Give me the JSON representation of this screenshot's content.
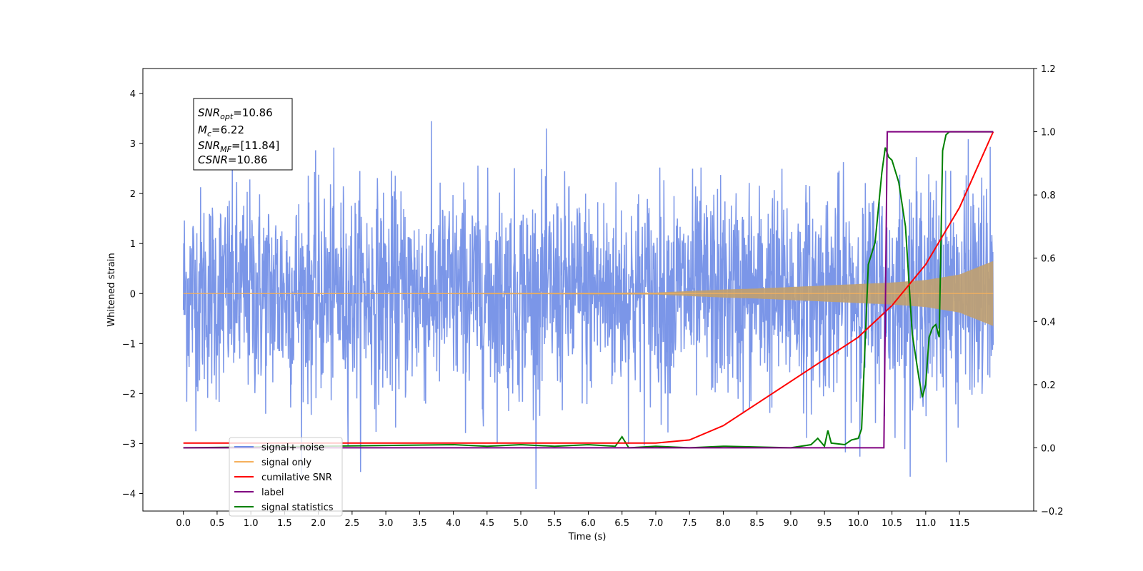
{
  "chart_data": {
    "type": "line",
    "xlabel": "Time (s)",
    "ylabel": "Whitened strain",
    "xlim": [
      -0.6,
      12.6
    ],
    "ylim": [
      -4.35,
      4.5
    ],
    "y2lim": [
      -0.2,
      1.2
    ],
    "x_ticks": [
      "0.0",
      "0.5",
      "1.0",
      "1.5",
      "2.0",
      "2.5",
      "3.0",
      "3.5",
      "4.0",
      "4.5",
      "5.0",
      "5.5",
      "6.0",
      "6.5",
      "7.0",
      "7.5",
      "8.0",
      "8.5",
      "9.0",
      "9.5",
      "10.0",
      "10.5",
      "11.0",
      "11.5"
    ],
    "y_ticks": [
      "−4",
      "−3",
      "−2",
      "−1",
      "0",
      "1",
      "2",
      "3",
      "4"
    ],
    "y2_ticks": [
      "−0.2",
      "0.0",
      "0.2",
      "0.4",
      "0.6",
      "0.8",
      "1.0",
      "1.2"
    ],
    "annotation": {
      "snr_opt_value": "=10.86",
      "mc_value": "=6.22",
      "snr_mf_value": "=[11.84]",
      "csnr_value": "=10.86"
    },
    "legend_position": "lower-left",
    "series": [
      {
        "name": "signal+ noise",
        "axis": "left",
        "color": "#6d8be6",
        "noise_sigma": 1.0,
        "x_range": [
          0,
          12.0
        ],
        "y_range_approx": [
          -3.9,
          4.1
        ]
      },
      {
        "name": "signal only",
        "axis": "left",
        "color": "#f5b05c",
        "envelope": {
          "x": [
            0,
            7.0,
            7.5,
            8.0,
            8.5,
            9.0,
            9.5,
            10.0,
            10.5,
            11.0,
            11.5,
            12.0
          ],
          "y": [
            0.0,
            0.02,
            0.05,
            0.08,
            0.1,
            0.13,
            0.16,
            0.19,
            0.22,
            0.27,
            0.38,
            0.65
          ]
        }
      },
      {
        "name": "cumilative SNR",
        "axis": "right",
        "color": "#ff0000",
        "x": [
          0,
          7.0,
          7.5,
          8.0,
          8.5,
          9.0,
          9.5,
          10.0,
          10.5,
          11.0,
          11.5,
          12.0
        ],
        "y": [
          0.015,
          0.015,
          0.025,
          0.07,
          0.14,
          0.21,
          0.28,
          0.35,
          0.45,
          0.58,
          0.76,
          1.0
        ]
      },
      {
        "name": "label",
        "axis": "right",
        "color": "#800080",
        "x": [
          0,
          10.38,
          10.43,
          12.0
        ],
        "y": [
          0.0,
          0.0,
          1.0,
          1.0
        ]
      },
      {
        "name": "signal statistics",
        "axis": "right",
        "color": "#008000",
        "x": [
          0,
          4.0,
          4.5,
          5.0,
          5.5,
          6.0,
          6.4,
          6.5,
          6.6,
          7.0,
          7.5,
          8.0,
          9.0,
          9.3,
          9.4,
          9.5,
          9.55,
          9.6,
          9.8,
          9.9,
          10.0,
          10.05,
          10.15,
          10.25,
          10.35,
          10.4,
          10.45,
          10.5,
          10.6,
          10.7,
          10.8,
          10.9,
          10.95,
          11.0,
          11.05,
          11.1,
          11.15,
          11.2,
          11.25,
          11.3,
          11.35,
          11.5,
          11.7,
          12.0
        ],
        "y": [
          0.0,
          0.01,
          0.005,
          0.01,
          0.005,
          0.01,
          0.005,
          0.035,
          0.0,
          0.005,
          0.0,
          0.005,
          0.0,
          0.01,
          0.03,
          0.005,
          0.055,
          0.015,
          0.01,
          0.025,
          0.03,
          0.06,
          0.58,
          0.65,
          0.87,
          0.95,
          0.92,
          0.91,
          0.84,
          0.7,
          0.36,
          0.22,
          0.16,
          0.2,
          0.35,
          0.38,
          0.39,
          0.35,
          0.94,
          0.99,
          1.0,
          1.0,
          1.0,
          1.0
        ]
      }
    ]
  }
}
